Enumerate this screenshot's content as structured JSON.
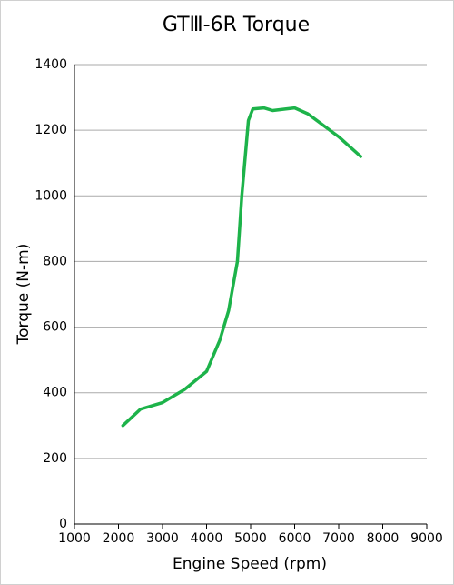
{
  "chart_data": {
    "type": "line",
    "title": "GTⅢ-6R Torque",
    "x_label": "Engine Speed (rpm)",
    "y_label": "Torque (N-m)",
    "series": [
      {
        "name": "Torque",
        "color": "#1db34a",
        "x": [
          2100,
          2500,
          3000,
          3500,
          4000,
          4300,
          4500,
          4700,
          4800,
          4950,
          5050,
          5300,
          5500,
          6000,
          6300,
          7000,
          7500
        ],
        "values": [
          300,
          350,
          370,
          410,
          465,
          560,
          650,
          800,
          1000,
          1230,
          1265,
          1268,
          1260,
          1268,
          1250,
          1180,
          1120
        ]
      }
    ],
    "xlim": [
      1000,
      9000
    ],
    "xticks": [
      1000,
      2000,
      3000,
      4000,
      5000,
      6000,
      7000,
      8000,
      9000
    ],
    "ylim": [
      0,
      1400
    ],
    "yticks": [
      0,
      200,
      400,
      600,
      800,
      1000,
      1200,
      1400
    ],
    "grid": true
  }
}
